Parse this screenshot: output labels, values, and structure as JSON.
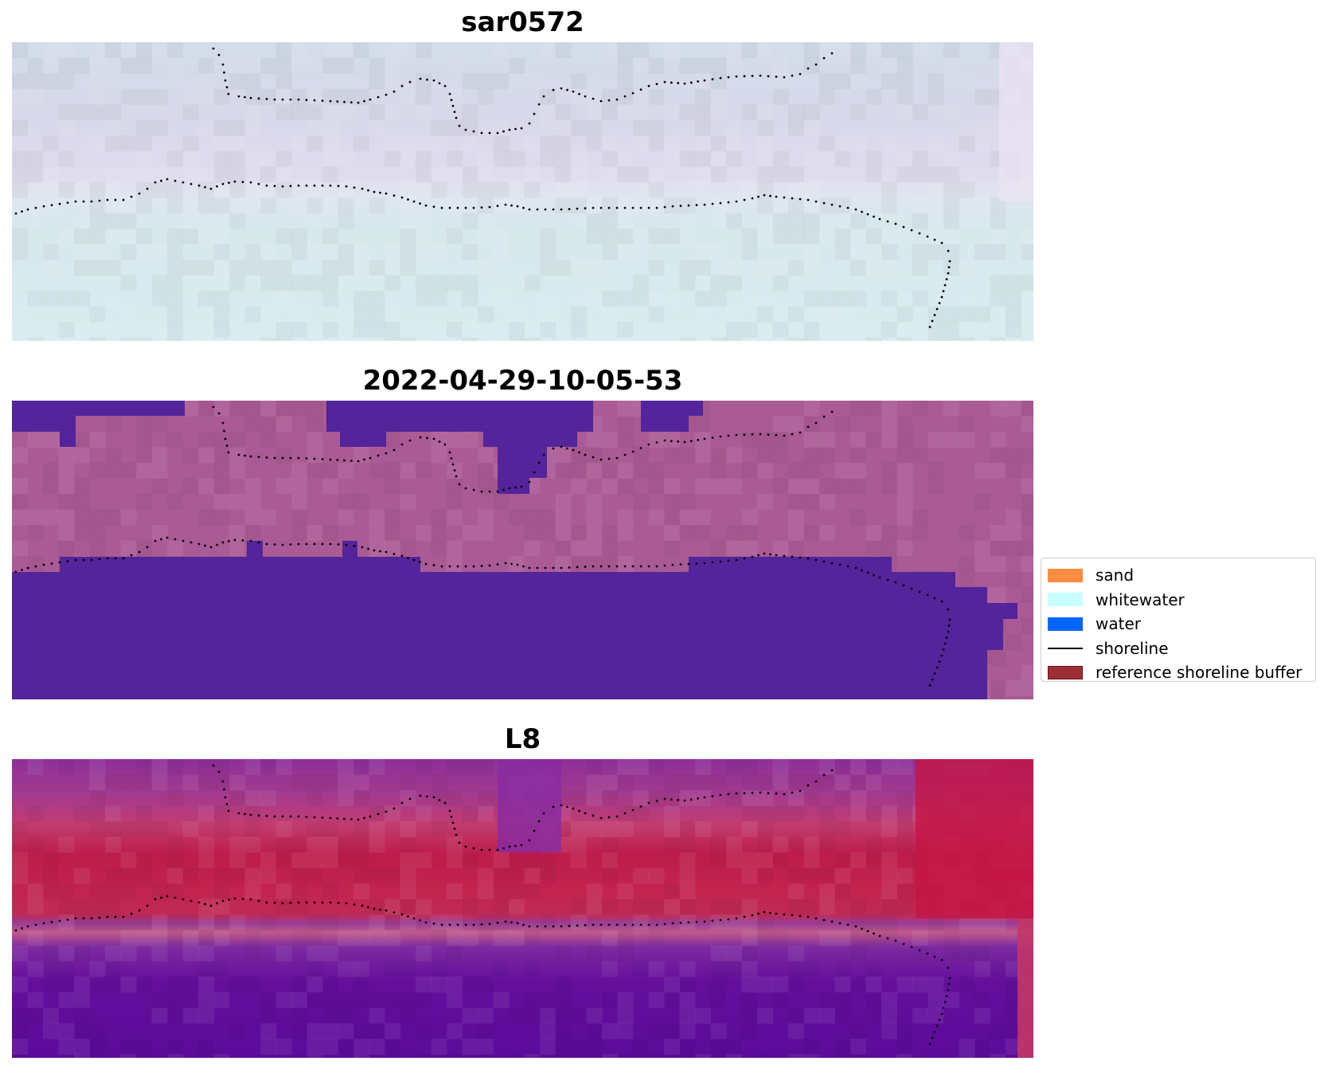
{
  "panels": [
    {
      "title": "sar0572",
      "style": "false-color composite"
    },
    {
      "title": "2022-04-29-10-05-53",
      "style": "classified image"
    },
    {
      "title": "L8",
      "style": "index map"
    }
  ],
  "legend": {
    "items": [
      {
        "label": "sand",
        "color": "#ff8c40",
        "kind": "patch"
      },
      {
        "label": "whitewater",
        "color": "#c8ffff",
        "kind": "patch"
      },
      {
        "label": "water",
        "color": "#0066ff",
        "kind": "patch"
      },
      {
        "label": "shoreline",
        "color": "#000000",
        "kind": "line"
      },
      {
        "label": "reference shoreline buffer",
        "color": "#9b2f33",
        "kind": "patch"
      }
    ]
  },
  "colors": {
    "composite_land": "#dadbea",
    "composite_sea": "#d6eaec",
    "class_land": "#aa5a95",
    "class_water": "#53249a",
    "index_high": "#bd0a3c",
    "index_mid": "#8e2f9a",
    "index_low": "#56069a",
    "shoreline": "#000000"
  }
}
